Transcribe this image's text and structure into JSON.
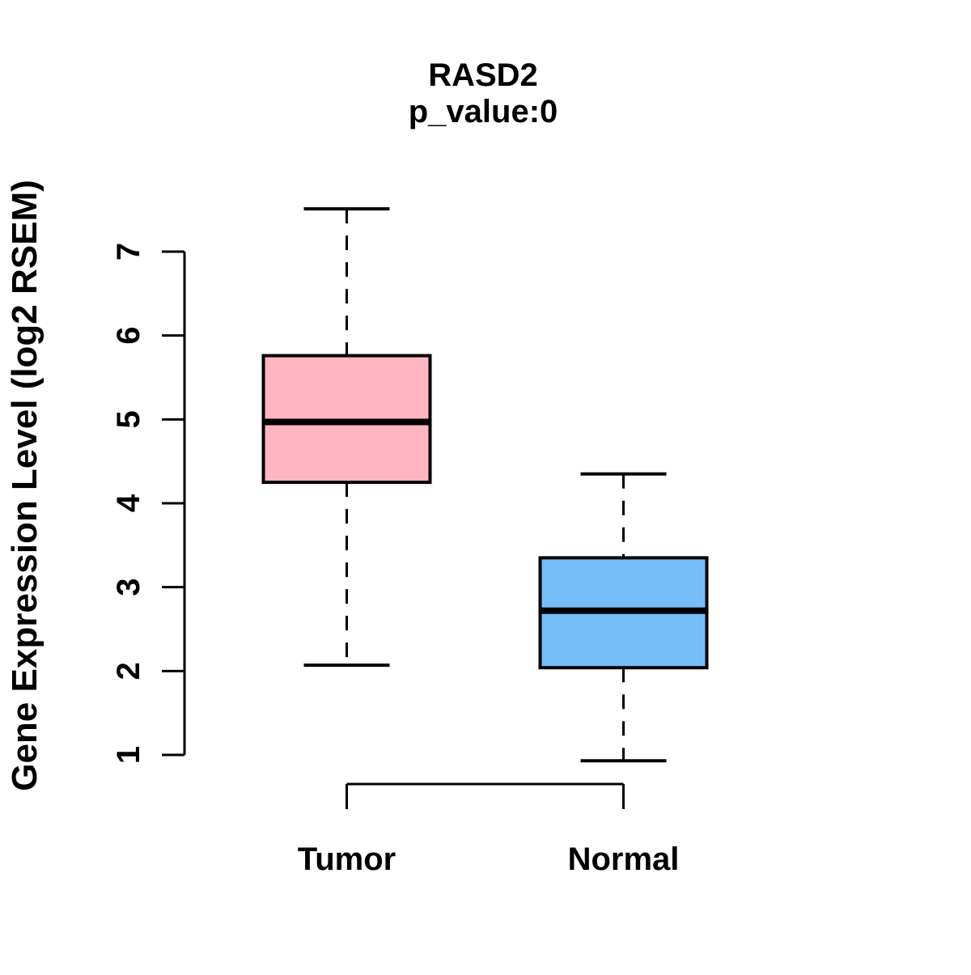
{
  "title": "RASD2",
  "subtitle": "p_value:0",
  "y_axis_label": "Gene Expression Level (log2 RSEM)",
  "chart_data": {
    "type": "boxplot",
    "title": "RASD2",
    "subtitle": "p_value:0",
    "ylabel": "Gene Expression Level (log2 RSEM)",
    "xlabel": "",
    "ylim": [
      1,
      7
    ],
    "yticks": [
      1,
      2,
      3,
      4,
      5,
      6,
      7
    ],
    "grid": false,
    "legend": "none",
    "categories": [
      "Tumor",
      "Normal"
    ],
    "series": [
      {
        "name": "Tumor",
        "color": "#FFB6C1",
        "whisker_low": 2.07,
        "q1": 4.25,
        "median": 4.97,
        "q3": 5.76,
        "whisker_high": 7.51
      },
      {
        "name": "Normal",
        "color": "#74BDF8",
        "whisker_low": 0.93,
        "q1": 2.04,
        "median": 2.72,
        "q3": 3.35,
        "whisker_high": 4.35
      }
    ],
    "colors": {
      "box_border": "#000000",
      "median": "#000000",
      "axis": "#000000"
    }
  }
}
